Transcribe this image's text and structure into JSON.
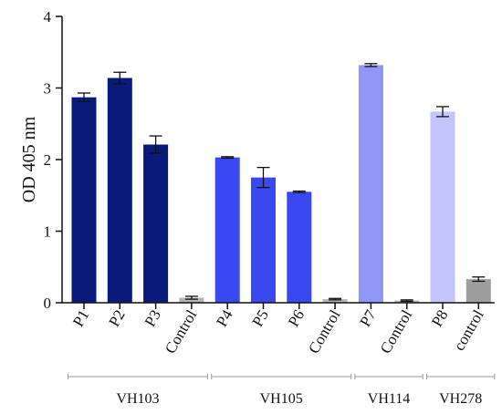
{
  "chart_data": {
    "type": "bar",
    "title": "",
    "xlabel": "",
    "ylabel": "OD 405 nm",
    "ylim": [
      0,
      4
    ],
    "yticks": [
      0,
      1,
      2,
      3,
      4
    ],
    "grid": false,
    "categories": [
      "P1",
      "P2",
      "P3",
      "Control",
      "P4",
      "P5",
      "P6",
      "Control",
      "P7",
      "Control",
      "P8",
      "control"
    ],
    "values": [
      2.87,
      3.14,
      2.21,
      0.07,
      2.03,
      1.75,
      1.55,
      0.05,
      3.32,
      0.03,
      2.67,
      0.33
    ],
    "errors": [
      0.06,
      0.08,
      0.12,
      0.02,
      0.01,
      0.14,
      0.01,
      0.01,
      0.02,
      0.01,
      0.07,
      0.03
    ],
    "bar_colors": [
      "#0a1a7a",
      "#0a1a7a",
      "#0a1a7a",
      "#b4b4b4",
      "#3a48f2",
      "#3a48f2",
      "#3a48f2",
      "#b4b4b4",
      "#8f96f5",
      "#b4b4b4",
      "#c3c6fb",
      "#9e9e9e"
    ],
    "groups": [
      {
        "label": "VH103",
        "from": 0,
        "to": 3
      },
      {
        "label": "VH105",
        "from": 4,
        "to": 7
      },
      {
        "label": "VH114",
        "from": 8,
        "to": 9
      },
      {
        "label": "VH278",
        "from": 10,
        "to": 11
      }
    ]
  }
}
